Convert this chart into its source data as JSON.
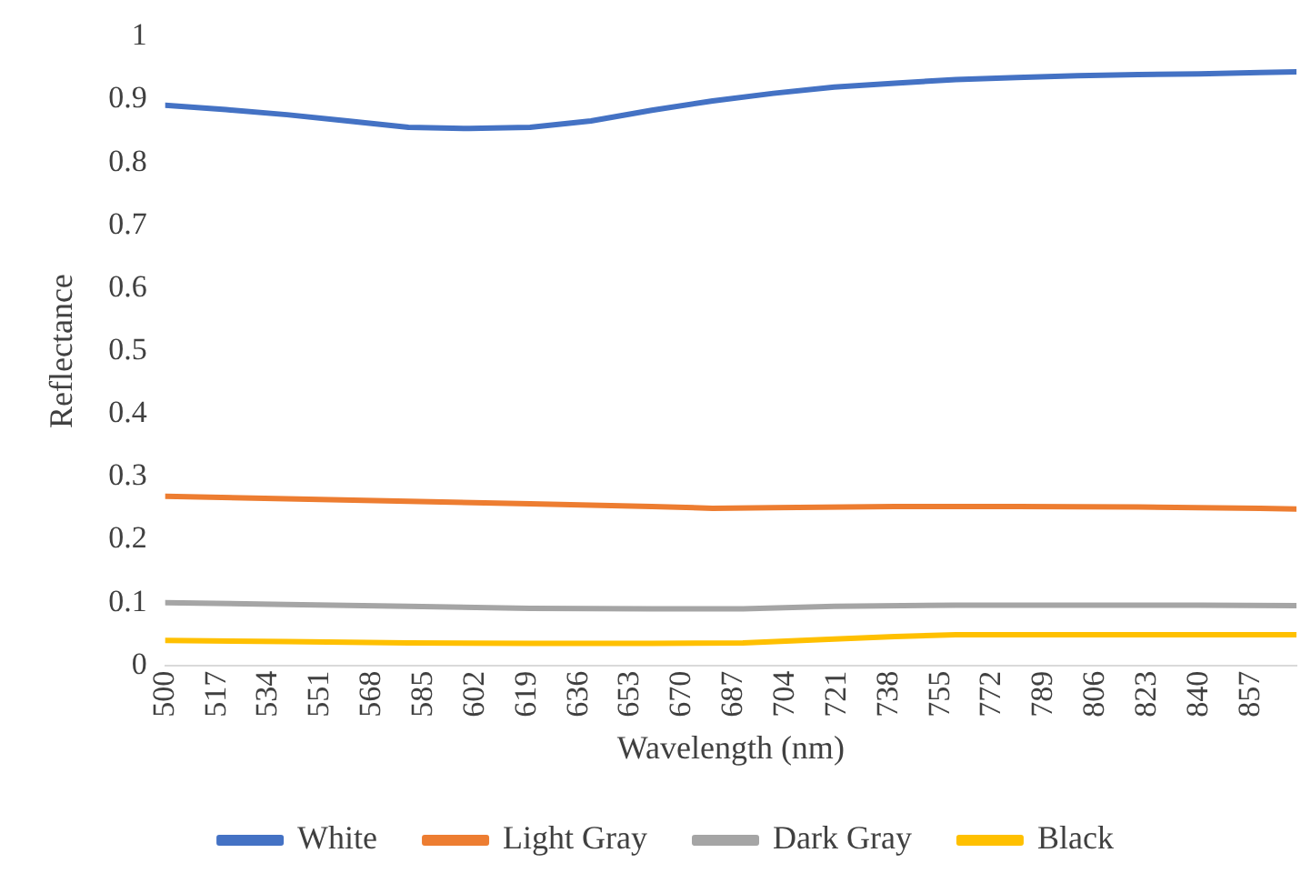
{
  "chart_data": {
    "type": "line",
    "xlabel": "Wavelength (nm)",
    "ylabel": "Reflectance",
    "xlim": [
      500,
      872
    ],
    "xticks": [
      500,
      517,
      534,
      551,
      568,
      585,
      602,
      619,
      636,
      653,
      670,
      687,
      704,
      721,
      738,
      755,
      772,
      789,
      806,
      823,
      840,
      857
    ],
    "ylim": [
      0,
      1
    ],
    "yticks": [
      0,
      0.1,
      0.2,
      0.3,
      0.4,
      0.5,
      0.6,
      0.7,
      0.8,
      0.9,
      1
    ],
    "grid": false,
    "legend": "bottom",
    "marker": "none",
    "line_style": "solid",
    "series": [
      {
        "name": "White",
        "color": "#4472c4",
        "x": [
          500,
          520,
          540,
          560,
          580,
          600,
          620,
          640,
          660,
          680,
          700,
          720,
          740,
          760,
          780,
          800,
          820,
          840,
          860,
          872
        ],
        "values": [
          0.891,
          0.884,
          0.876,
          0.866,
          0.856,
          0.854,
          0.856,
          0.866,
          0.883,
          0.898,
          0.91,
          0.92,
          0.926,
          0.932,
          0.935,
          0.938,
          0.94,
          0.941,
          0.943,
          0.944
        ]
      },
      {
        "name": "Light Gray",
        "color": "#ed7d31",
        "x": [
          500,
          540,
          580,
          620,
          660,
          680,
          700,
          740,
          780,
          820,
          860,
          872
        ],
        "values": [
          0.269,
          0.265,
          0.261,
          0.257,
          0.253,
          0.25,
          0.251,
          0.253,
          0.253,
          0.252,
          0.25,
          0.249
        ]
      },
      {
        "name": "Dark Gray",
        "color": "#a5a5a5",
        "x": [
          500,
          540,
          580,
          620,
          660,
          690,
          720,
          760,
          800,
          840,
          872
        ],
        "values": [
          0.1,
          0.097,
          0.094,
          0.091,
          0.09,
          0.09,
          0.094,
          0.096,
          0.096,
          0.096,
          0.095
        ]
      },
      {
        "name": "Black",
        "color": "#ffc000",
        "x": [
          500,
          540,
          580,
          620,
          660,
          690,
          720,
          740,
          760,
          800,
          840,
          872
        ],
        "values": [
          0.04,
          0.038,
          0.036,
          0.035,
          0.035,
          0.036,
          0.042,
          0.046,
          0.049,
          0.049,
          0.049,
          0.049
        ]
      }
    ]
  }
}
